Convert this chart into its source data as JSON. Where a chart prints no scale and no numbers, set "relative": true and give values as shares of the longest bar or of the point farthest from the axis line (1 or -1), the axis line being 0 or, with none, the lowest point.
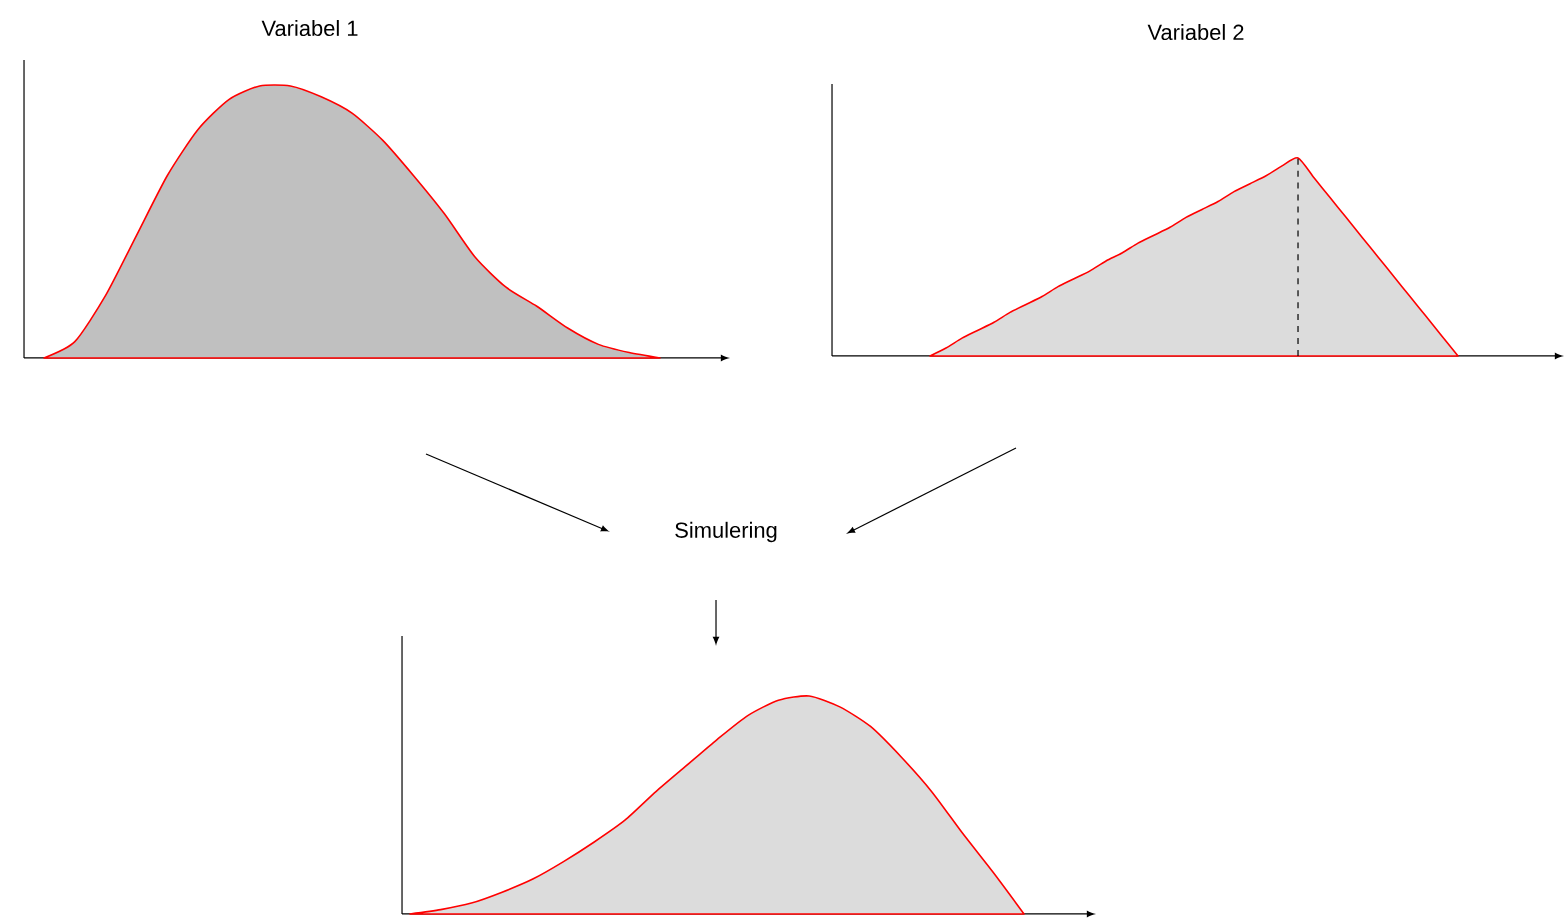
{
  "chart_data": [
    {
      "type": "area",
      "title": "Variabel 1",
      "relative": true,
      "categories": [
        null,
        null,
        null,
        null,
        null,
        null,
        null,
        null,
        null,
        null,
        null,
        null,
        null,
        null,
        null,
        null,
        null,
        null,
        null,
        null,
        null
      ],
      "series": [
        {
          "color": "#c0c0c0",
          "values": [
            0,
            0.06,
            0.23,
            0.45,
            0.67,
            0.84,
            0.95,
            1.0,
            1.0,
            0.96,
            0.9,
            0.8,
            0.67,
            0.53,
            0.37,
            0.26,
            0.19,
            0.11,
            0.05,
            0.02,
            0
          ]
        }
      ]
    },
    {
      "type": "area",
      "title": "Variabel 2",
      "relative": true,
      "categories": [
        null,
        null,
        null,
        null,
        null,
        null,
        null,
        null,
        null,
        null,
        null,
        null,
        null,
        null,
        null,
        null,
        null,
        null,
        null,
        null,
        null,
        null,
        null,
        null,
        null,
        null,
        null,
        null,
        null,
        null,
        null,
        null,
        null,
        null
      ],
      "series": [
        {
          "color": "#dcdcdc",
          "values": [
            0,
            0.04,
            0.09,
            0.13,
            0.17,
            0.22,
            0.26,
            0.3,
            0.35,
            0.39,
            0.43,
            0.48,
            0.52,
            0.57,
            0.61,
            0.65,
            0.7,
            0.74,
            0.78,
            0.83,
            0.87,
            0.91,
            0.96,
            1.0,
            0.9,
            0.8,
            0.7,
            0.6,
            0.5,
            0.4,
            0.3,
            0.2,
            0.1,
            0
          ]
        }
      ]
    },
    {
      "type": "area",
      "title": "Simulering",
      "relative": true,
      "categories": [
        null,
        null,
        null,
        null,
        null,
        null,
        null,
        null,
        null,
        null,
        null,
        null,
        null,
        null,
        null,
        null,
        null,
        null,
        null,
        null,
        null
      ],
      "series": [
        {
          "color": "#dcdcdc",
          "values": [
            0,
            0.02,
            0.05,
            0.1,
            0.16,
            0.24,
            0.33,
            0.43,
            0.56,
            0.68,
            0.8,
            0.91,
            0.98,
            1.0,
            0.95,
            0.86,
            0.72,
            0.56,
            0.37,
            0.19,
            0
          ]
        }
      ]
    }
  ]
}
